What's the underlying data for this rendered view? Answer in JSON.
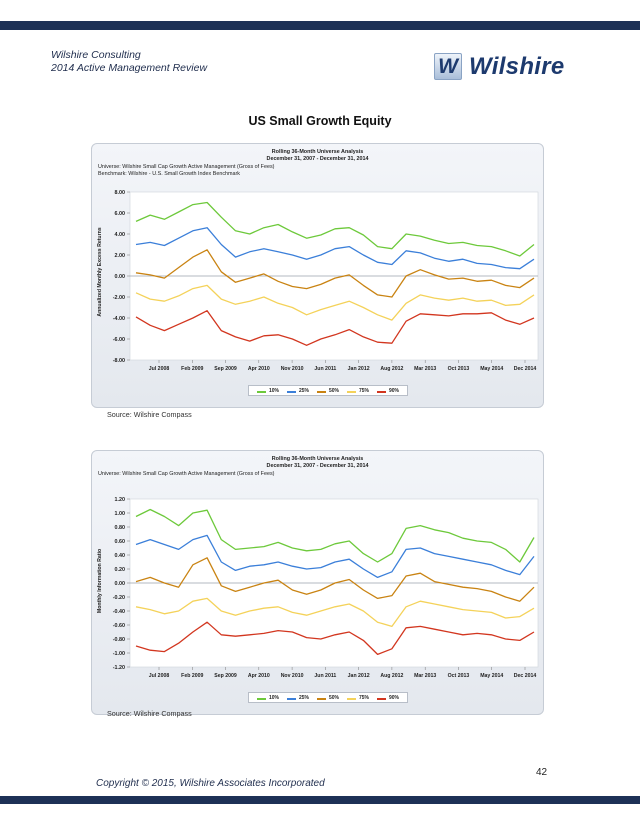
{
  "header": {
    "company": "Wilshire Consulting",
    "report": "2014 Active Management Review"
  },
  "logo": {
    "mark": "W",
    "text": "Wilshire"
  },
  "page_title": "US Small Growth Equity",
  "colors": {
    "band": "#1d3156",
    "p10": "#6dc93b",
    "p25": "#3b7fd9",
    "p50": "#c98312",
    "p75": "#f4d25a",
    "p90": "#d2361f"
  },
  "chart1_text": {
    "title": "Rolling 36-Month Universe Analysis",
    "subtitle": "December 31, 2007 - December 31, 2014",
    "universe": "Universe: Wilshire Small Cap Growth Active Management (Gross of Fees)",
    "benchmark": "Benchmark: Wilshire - U.S. Small Growth Index Benchmark",
    "ylabel": "Annualized Monthly Excess Returns"
  },
  "chart2_text": {
    "title": "Rolling 36-Month Universe Analysis",
    "subtitle": "December 31, 2007 - December 31, 2014",
    "universe": "Universe: Wilshire Small Cap Growth Active Management (Gross of Fees)",
    "ylabel": "Monthly Information Ratio"
  },
  "legend": {
    "l10": "10%",
    "l25": "25%",
    "l50": "50%",
    "l75": "75%",
    "l90": "90%"
  },
  "source1": "Source: Wilshire Compass",
  "source2": "Source: Wilshire Compass",
  "page_number": "42",
  "copyright": "Copyright © 2015, Wilshire Associates Incorporated",
  "chart_data": [
    {
      "type": "line",
      "title": "Rolling 36-Month Universe Analysis",
      "subtitle": "December 31, 2007 - December 31, 2014",
      "ylabel": "Annualized Monthly Excess Returns",
      "ylim": [
        -8,
        8
      ],
      "yticks": [
        "8.00",
        "6.00",
        "4.00",
        "2.00",
        "0.00",
        "-2.00",
        "-4.00",
        "-6.00",
        "-8.00"
      ],
      "xticks": [
        "Jul 2008",
        "Feb 2009",
        "Sep 2009",
        "Apr 2010",
        "Nov 2010",
        "Jun 2011",
        "Jan 2012",
        "Aug 2012",
        "Mar 2013",
        "Oct 2013",
        "May 2014",
        "Dec 2014"
      ],
      "x": [
        "Dec 2007",
        "Mar 2008",
        "Jun 2008",
        "Sep 2008",
        "Dec 2008",
        "Mar 2009",
        "Jun 2009",
        "Sep 2009",
        "Dec 2009",
        "Mar 2010",
        "Jun 2010",
        "Sep 2010",
        "Dec 2010",
        "Mar 2011",
        "Jun 2011",
        "Sep 2011",
        "Dec 2011",
        "Mar 2012",
        "Jun 2012",
        "Sep 2012",
        "Dec 2012",
        "Mar 2013",
        "Jun 2013",
        "Sep 2013",
        "Dec 2013",
        "Mar 2014",
        "Jun 2014",
        "Sep 2014",
        "Dec 2014"
      ],
      "grid": false,
      "legend_position": "bottom",
      "series": [
        {
          "name": "10%",
          "values": [
            5.2,
            5.8,
            5.4,
            6.1,
            6.8,
            7.0,
            5.6,
            4.3,
            4.0,
            4.6,
            4.9,
            4.2,
            3.6,
            3.9,
            4.5,
            4.6,
            3.9,
            2.8,
            2.6,
            4.0,
            3.8,
            3.4,
            3.1,
            3.2,
            2.9,
            2.8,
            2.4,
            1.9,
            3.0
          ]
        },
        {
          "name": "25%",
          "values": [
            3.0,
            3.2,
            2.9,
            3.6,
            4.3,
            4.6,
            3.0,
            1.8,
            2.3,
            2.6,
            2.3,
            2.0,
            1.6,
            2.0,
            2.6,
            2.8,
            2.0,
            1.3,
            1.1,
            2.4,
            2.2,
            1.7,
            1.4,
            1.6,
            1.2,
            1.1,
            0.8,
            0.7,
            1.6
          ]
        },
        {
          "name": "50%",
          "values": [
            0.3,
            0.1,
            -0.2,
            0.8,
            1.8,
            2.5,
            0.4,
            -0.6,
            -0.2,
            0.2,
            -0.5,
            -1.0,
            -1.2,
            -0.8,
            -0.2,
            0.1,
            -0.9,
            -1.8,
            -2.0,
            0.0,
            0.6,
            0.1,
            -0.3,
            -0.2,
            -0.5,
            -0.4,
            -0.9,
            -1.1,
            -0.2
          ]
        },
        {
          "name": "75%",
          "values": [
            -1.6,
            -2.2,
            -2.4,
            -1.9,
            -1.2,
            -0.9,
            -2.2,
            -2.7,
            -2.4,
            -2.0,
            -2.6,
            -3.0,
            -3.7,
            -3.2,
            -2.8,
            -2.4,
            -3.0,
            -3.7,
            -4.2,
            -2.6,
            -1.8,
            -2.1,
            -2.3,
            -2.1,
            -2.4,
            -2.3,
            -2.8,
            -2.7,
            -1.8
          ]
        },
        {
          "name": "90%",
          "values": [
            -3.9,
            -4.7,
            -5.2,
            -4.6,
            -4.0,
            -3.3,
            -5.2,
            -5.8,
            -6.2,
            -5.7,
            -5.6,
            -6.0,
            -6.6,
            -6.0,
            -5.6,
            -5.1,
            -5.8,
            -6.3,
            -6.4,
            -4.3,
            -3.6,
            -3.7,
            -3.8,
            -3.6,
            -3.6,
            -3.5,
            -4.2,
            -4.6,
            -4.0
          ]
        }
      ]
    },
    {
      "type": "line",
      "title": "Rolling 36-Month Universe Analysis",
      "subtitle": "December 31, 2007 - December 31, 2014",
      "ylabel": "Monthly Information Ratio",
      "ylim": [
        -1.2,
        1.2
      ],
      "yticks": [
        "1.20",
        "1.00",
        "0.80",
        "0.60",
        "0.40",
        "0.20",
        "0.00",
        "-0.20",
        "-0.40",
        "-0.60",
        "-0.80",
        "-1.00",
        "-1.20"
      ],
      "xticks": [
        "Jul 2008",
        "Feb 2009",
        "Sep 2009",
        "Apr 2010",
        "Nov 2010",
        "Jun 2011",
        "Jan 2012",
        "Aug 2012",
        "Mar 2013",
        "Oct 2013",
        "May 2014",
        "Dec 2014"
      ],
      "x": [
        "Dec 2007",
        "Mar 2008",
        "Jun 2008",
        "Sep 2008",
        "Dec 2008",
        "Mar 2009",
        "Jun 2009",
        "Sep 2009",
        "Dec 2009",
        "Mar 2010",
        "Jun 2010",
        "Sep 2010",
        "Dec 2010",
        "Mar 2011",
        "Jun 2011",
        "Sep 2011",
        "Dec 2011",
        "Mar 2012",
        "Jun 2012",
        "Sep 2012",
        "Dec 2012",
        "Mar 2013",
        "Jun 2013",
        "Sep 2013",
        "Dec 2013",
        "Mar 2014",
        "Jun 2014",
        "Sep 2014",
        "Dec 2014"
      ],
      "grid": false,
      "legend_position": "bottom",
      "series": [
        {
          "name": "10%",
          "values": [
            0.95,
            1.05,
            0.95,
            0.82,
            1.0,
            1.04,
            0.62,
            0.48,
            0.5,
            0.52,
            0.58,
            0.5,
            0.46,
            0.48,
            0.56,
            0.6,
            0.42,
            0.3,
            0.42,
            0.78,
            0.82,
            0.76,
            0.72,
            0.64,
            0.6,
            0.58,
            0.48,
            0.3,
            0.65
          ]
        },
        {
          "name": "25%",
          "values": [
            0.55,
            0.62,
            0.55,
            0.48,
            0.62,
            0.68,
            0.3,
            0.18,
            0.24,
            0.26,
            0.3,
            0.24,
            0.2,
            0.22,
            0.3,
            0.34,
            0.2,
            0.08,
            0.16,
            0.48,
            0.5,
            0.42,
            0.38,
            0.34,
            0.3,
            0.26,
            0.18,
            0.12,
            0.38
          ]
        },
        {
          "name": "50%",
          "values": [
            0.02,
            0.08,
            0.0,
            -0.06,
            0.26,
            0.36,
            -0.04,
            -0.12,
            -0.06,
            0.0,
            0.04,
            -0.1,
            -0.16,
            -0.1,
            0.0,
            0.05,
            -0.1,
            -0.22,
            -0.18,
            0.1,
            0.14,
            0.02,
            -0.02,
            -0.06,
            -0.08,
            -0.12,
            -0.2,
            -0.26,
            -0.06
          ]
        },
        {
          "name": "75%",
          "values": [
            -0.34,
            -0.38,
            -0.44,
            -0.4,
            -0.26,
            -0.22,
            -0.4,
            -0.46,
            -0.4,
            -0.36,
            -0.34,
            -0.42,
            -0.46,
            -0.4,
            -0.34,
            -0.3,
            -0.4,
            -0.56,
            -0.62,
            -0.34,
            -0.26,
            -0.3,
            -0.34,
            -0.38,
            -0.4,
            -0.42,
            -0.5,
            -0.48,
            -0.36
          ]
        },
        {
          "name": "90%",
          "values": [
            -0.9,
            -0.96,
            -0.98,
            -0.86,
            -0.7,
            -0.56,
            -0.74,
            -0.76,
            -0.74,
            -0.72,
            -0.68,
            -0.7,
            -0.78,
            -0.8,
            -0.74,
            -0.7,
            -0.82,
            -1.02,
            -0.94,
            -0.64,
            -0.62,
            -0.66,
            -0.7,
            -0.74,
            -0.72,
            -0.74,
            -0.8,
            -0.82,
            -0.7
          ]
        }
      ]
    }
  ]
}
